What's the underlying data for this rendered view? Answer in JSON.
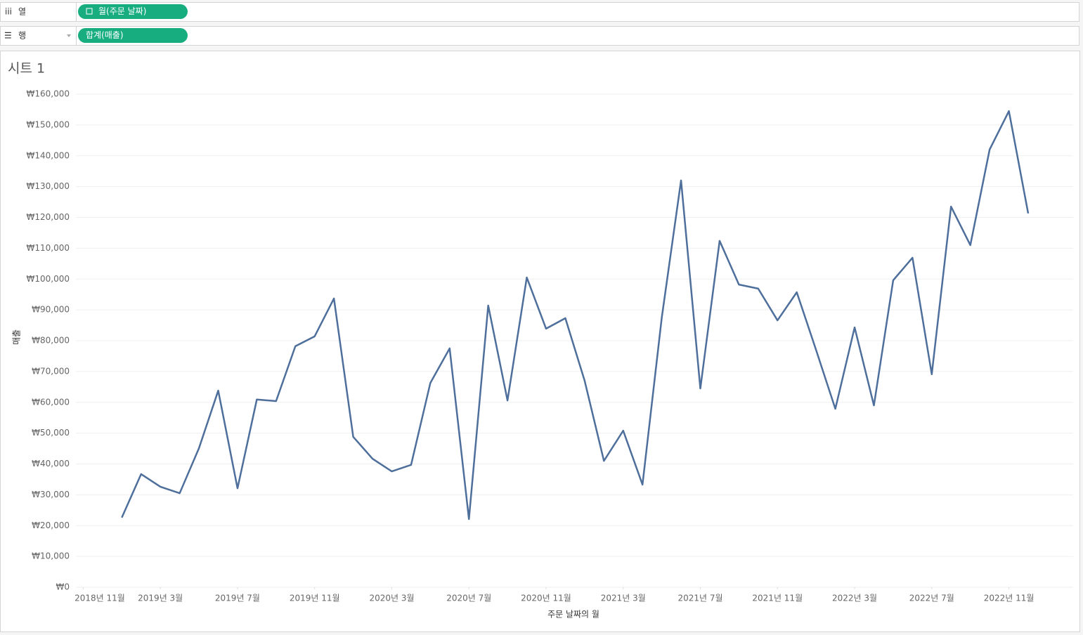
{
  "shelves": {
    "columns": {
      "label": "열",
      "pill": "월(주문 날짜)"
    },
    "rows": {
      "label": "행",
      "pill": "합계(매출)"
    }
  },
  "sheet_title": "시트 1",
  "chart_data": {
    "type": "line",
    "x_label": "주문 날짜의 월",
    "y_label": "매출",
    "color": "#4e6f9b",
    "grid": true,
    "x": [
      "2019-01",
      "2019-02",
      "2019-03",
      "2019-04",
      "2019-05",
      "2019-06",
      "2019-07",
      "2019-08",
      "2019-09",
      "2019-10",
      "2019-11",
      "2019-12",
      "2020-01",
      "2020-02",
      "2020-03",
      "2020-04",
      "2020-05",
      "2020-06",
      "2020-07",
      "2020-08",
      "2020-09",
      "2020-10",
      "2020-11",
      "2020-12",
      "2021-01",
      "2021-02",
      "2021-03",
      "2021-04",
      "2021-05",
      "2021-06",
      "2021-07",
      "2021-08",
      "2021-09",
      "2021-10",
      "2021-11",
      "2021-12",
      "2022-01",
      "2022-02",
      "2022-03",
      "2022-04",
      "2022-05",
      "2022-06",
      "2022-07",
      "2022-08",
      "2022-09",
      "2022-10",
      "2022-11",
      "2022-12"
    ],
    "values": [
      22600,
      36700,
      32600,
      30500,
      45100,
      63800,
      32100,
      60900,
      60400,
      78200,
      81400,
      93700,
      48800,
      41700,
      37600,
      39700,
      66300,
      77500,
      22100,
      91400,
      60600,
      100500,
      83900,
      87300,
      67000,
      41000,
      50800,
      33300,
      87500,
      132000,
      64500,
      112400,
      98200,
      96900,
      86600,
      95700,
      77000,
      57900,
      84300,
      59000,
      99600,
      106900,
      69100,
      123500,
      111000,
      142000,
      154500,
      121300
    ],
    "xlim": [
      "2018-10",
      "2023-02"
    ],
    "xticks": [
      {
        "value": "2018-11",
        "label": "2018년 11월"
      },
      {
        "value": "2019-03",
        "label": "2019년 3월"
      },
      {
        "value": "2019-07",
        "label": "2019년 7월"
      },
      {
        "value": "2019-11",
        "label": "2019년 11월"
      },
      {
        "value": "2020-03",
        "label": "2020년 3월"
      },
      {
        "value": "2020-07",
        "label": "2020년 7월"
      },
      {
        "value": "2020-11",
        "label": "2020년 11월"
      },
      {
        "value": "2021-03",
        "label": "2021년 3월"
      },
      {
        "value": "2021-07",
        "label": "2021년 7월"
      },
      {
        "value": "2021-11",
        "label": "2021년 11월"
      },
      {
        "value": "2022-03",
        "label": "2022년 3월"
      },
      {
        "value": "2022-07",
        "label": "2022년 7월"
      },
      {
        "value": "2022-11",
        "label": "2022년 11월"
      }
    ],
    "ylim": [
      0,
      160000
    ],
    "yticks": [
      {
        "value": 0,
        "label": "₩0"
      },
      {
        "value": 10000,
        "label": "₩10,000"
      },
      {
        "value": 20000,
        "label": "₩20,000"
      },
      {
        "value": 30000,
        "label": "₩30,000"
      },
      {
        "value": 40000,
        "label": "₩40,000"
      },
      {
        "value": 50000,
        "label": "₩50,000"
      },
      {
        "value": 60000,
        "label": "₩60,000"
      },
      {
        "value": 70000,
        "label": "₩70,000"
      },
      {
        "value": 80000,
        "label": "₩80,000"
      },
      {
        "value": 90000,
        "label": "₩90,000"
      },
      {
        "value": 100000,
        "label": "₩100,000"
      },
      {
        "value": 110000,
        "label": "₩110,000"
      },
      {
        "value": 120000,
        "label": "₩120,000"
      },
      {
        "value": 130000,
        "label": "₩130,000"
      },
      {
        "value": 140000,
        "label": "₩140,000"
      },
      {
        "value": 150000,
        "label": "₩150,000"
      },
      {
        "value": 160000,
        "label": "₩160,000"
      }
    ]
  }
}
